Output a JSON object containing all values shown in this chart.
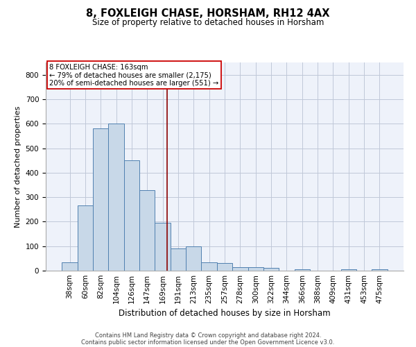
{
  "title1": "8, FOXLEIGH CHASE, HORSHAM, RH12 4AX",
  "title2": "Size of property relative to detached houses in Horsham",
  "xlabel": "Distribution of detached houses by size in Horsham",
  "ylabel": "Number of detached properties",
  "categories": [
    "38sqm",
    "60sqm",
    "82sqm",
    "104sqm",
    "126sqm",
    "147sqm",
    "169sqm",
    "191sqm",
    "213sqm",
    "235sqm",
    "257sqm",
    "278sqm",
    "300sqm",
    "322sqm",
    "344sqm",
    "366sqm",
    "388sqm",
    "409sqm",
    "431sqm",
    "453sqm",
    "475sqm"
  ],
  "values": [
    35,
    265,
    580,
    602,
    450,
    328,
    195,
    90,
    100,
    35,
    30,
    15,
    15,
    10,
    0,
    5,
    0,
    0,
    5,
    0,
    5
  ],
  "bar_color": "#c8d8e8",
  "bar_edge_color": "#5080b0",
  "vline_x": 6.3,
  "vline_color": "#8b0000",
  "annotation_text": "8 FOXLEIGH CHASE: 163sqm\n← 79% of detached houses are smaller (2,175)\n20% of semi-detached houses are larger (551) →",
  "annotation_box_color": "white",
  "annotation_box_edge_color": "#cc0000",
  "footer1": "Contains HM Land Registry data © Crown copyright and database right 2024.",
  "footer2": "Contains public sector information licensed under the Open Government Licence v3.0.",
  "ylim": [
    0,
    850
  ],
  "yticks": [
    0,
    100,
    200,
    300,
    400,
    500,
    600,
    700,
    800
  ],
  "bg_color": "#eef2fa",
  "grid_color": "#c0c8d8",
  "title1_fontsize": 10.5,
  "title2_fontsize": 8.5,
  "ylabel_fontsize": 8.0,
  "xlabel_fontsize": 8.5,
  "tick_fontsize": 7.5,
  "annot_fontsize": 7.2,
  "footer_fontsize": 6.0
}
